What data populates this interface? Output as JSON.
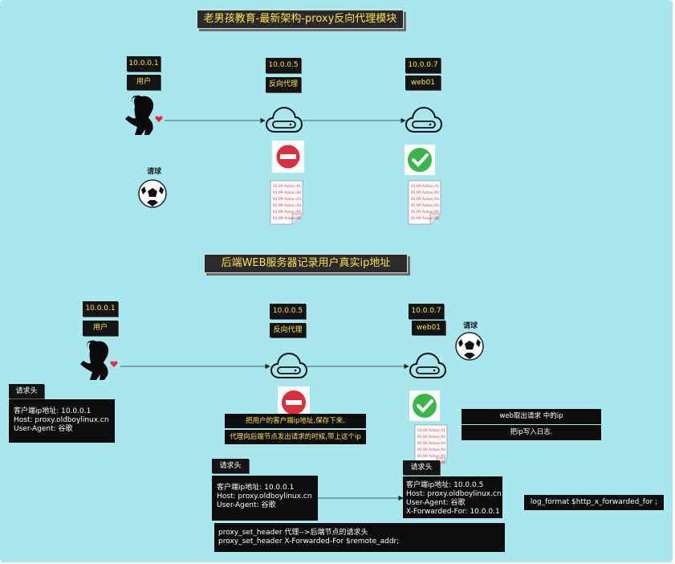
{
  "section1": {
    "title": "老男孩教育-最新架构-proxy反向代理模块",
    "user_ip": "10.0.0.1",
    "user_label": "用户",
    "proxy_ip": "10.0.0.5",
    "proxy_label": "反向代理",
    "web_ip": "10.0.0.7",
    "web_label": "web01",
    "request_label": "请球"
  },
  "section2": {
    "title": "后端WEB服务器记录用户真实ip地址",
    "user_ip": "10.0.0.1",
    "user_label": "用户",
    "proxy_ip": "10.0.0.5",
    "proxy_label": "反向代理",
    "web_ip": "10.0.0.7",
    "web_label": "web01",
    "request_label": "请球",
    "req_header_left": {
      "tag": "请求头",
      "lines": [
        "客户端ip地址: 10.0.0.1",
        "Host: proxy.oldboylinux.cn",
        "User-Agent:  谷歌"
      ]
    },
    "proxy_note": {
      "line1": "把用户的客户端ip地址,保存下来.",
      "line2": "代理向后端节点发出请求的时候,带上这个ip"
    },
    "req_header_mid": {
      "tag": "请求头",
      "lines": [
        "客户端ip地址: 10.0.0.1",
        "Host: proxy.oldboylinux.cn",
        "User-Agent:  谷歌"
      ]
    },
    "req_header_right": {
      "tag": "请求头",
      "lines": [
        "客户端ip地址: 10.0.0.5",
        "Host: proxy.oldboylinux.cn",
        "User-Agent:  谷歌",
        "X-Forwarded-For: 10.0.0.1"
      ]
    },
    "proxy_set_header": {
      "line1": "proxy_set_header 代理-->后端节点的请求头",
      "line2": "proxy_set_header  X-Forwarded-For   $remote_addr;"
    },
    "web_note": {
      "line1": "web取出请求 中的ip",
      "line2": "把ip写入日志."
    },
    "log_format": "log_format   $http_x_forwarded_for ;"
  },
  "log_lines": [
    "01:09 Action A1",
    "01:09 Action A2",
    "01:09 Action A3",
    "01:09 Action A4",
    "01:09 Action A5",
    "01:09 Action A6"
  ],
  "colors": {
    "background": "#a9e7ef",
    "box": "#0d0d0d",
    "tag_text": "#ffe24a",
    "deny": "#d9303e",
    "allow": "#3bb54a"
  },
  "icons": [
    "user-silhouette-icon",
    "cloud-server-icon",
    "deny-icon",
    "check-icon",
    "log-document-icon",
    "soccer-ball-icon"
  ]
}
